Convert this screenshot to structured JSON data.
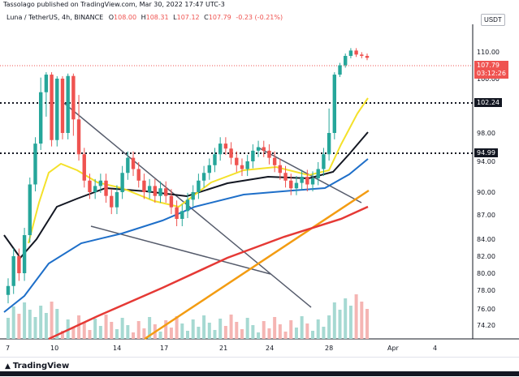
{
  "caption": "Tassolago published on TradingView.com, Mar 30, 2022 17:47 UTC-3",
  "symbol": {
    "pair": "Luna / TetherUS, 4h, BINANCE",
    "open_label": "O",
    "open": "108.00",
    "high_label": "H",
    "high": "108.31",
    "low_label": "L",
    "low": "107.12",
    "close_label": "C",
    "close": "107.79",
    "change": "-0.23 (-0.21%)"
  },
  "currency": "USDT",
  "last_price": {
    "value": "107.79",
    "countdown": "03:12:26"
  },
  "level_badges": [
    "102.24",
    "94.99"
  ],
  "brand": "TradingView",
  "colors": {
    "up": "#26a69a",
    "down": "#ef5350",
    "ma_fast": "#f4e12a",
    "ma_slow": "#131722",
    "ma_blue": "#1e6fc9",
    "ma_red": "#e53935",
    "trend_orange": "#f39c12"
  },
  "chart_data": {
    "type": "candlestick",
    "timeframe": "4h",
    "y_axis_ticks": [
      "110.00",
      "100.00",
      "98.00",
      "94.00",
      "90.00",
      "87.00",
      "84.00",
      "82.00",
      "80.00",
      "78.00",
      "76.00",
      "74.20"
    ],
    "x_axis_ticks": [
      "7",
      "10",
      "14",
      "17",
      "21",
      "24",
      "28",
      "Apr",
      "4"
    ],
    "horizontal_levels": [
      102.24,
      94.99
    ],
    "ohlc_close_path": [
      78.5,
      82.0,
      80.0,
      84.5,
      91.0,
      96.5,
      99.5,
      101.5,
      97.0,
      100.0,
      98.0,
      101.0,
      98.5,
      95.0,
      91.5,
      90.0,
      90.8,
      91.5,
      89.5,
      88.0,
      90.0,
      92.5,
      94.5,
      93.0,
      91.5,
      90.0,
      90.8,
      89.5,
      90.5,
      89.5,
      88.0,
      86.5,
      87.5,
      89.0,
      90.0,
      91.5,
      92.5,
      93.5,
      95.0,
      96.5,
      95.8,
      94.5,
      93.5,
      93.0,
      94.0,
      95.5,
      96.0,
      95.5,
      94.5,
      93.5,
      92.5,
      91.5,
      90.5,
      91.2,
      92.0,
      91.0,
      91.8,
      93.0,
      95.0,
      98.0,
      101.5,
      105.0,
      108.5,
      110.5,
      109.0,
      108.5,
      107.79
    ]
  }
}
